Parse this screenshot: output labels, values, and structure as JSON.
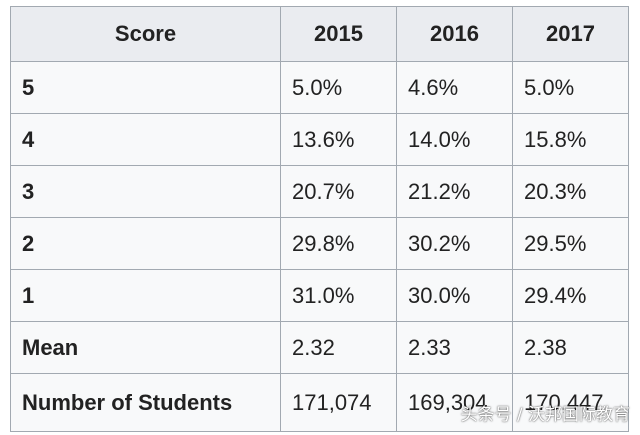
{
  "chart_data": {
    "type": "table",
    "columns": [
      "Score",
      "2015",
      "2016",
      "2017"
    ],
    "rows": [
      {
        "label": "5",
        "values": [
          "5.0%",
          "4.6%",
          "5.0%"
        ]
      },
      {
        "label": "4",
        "values": [
          "13.6%",
          "14.0%",
          "15.8%"
        ]
      },
      {
        "label": "3",
        "values": [
          "20.7%",
          "21.2%",
          "20.3%"
        ]
      },
      {
        "label": "2",
        "values": [
          "29.8%",
          "30.2%",
          "29.5%"
        ]
      },
      {
        "label": "1",
        "values": [
          "31.0%",
          "30.0%",
          "29.4%"
        ]
      },
      {
        "label": "Mean",
        "values": [
          "2.32",
          "2.33",
          "2.38"
        ]
      },
      {
        "label": "Number of Students",
        "values": [
          "171,074",
          "169,304",
          "170,447"
        ]
      }
    ]
  },
  "watermark": "头条号 / 沃邦国际教育"
}
